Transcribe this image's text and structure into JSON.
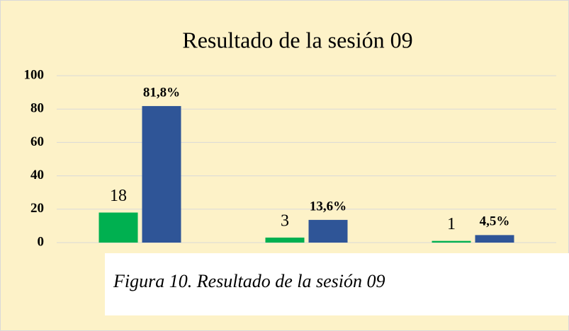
{
  "chart_data": {
    "type": "bar",
    "title": "Resultado de la sesión 09",
    "categories": [
      null,
      null,
      null
    ],
    "series": [
      {
        "color": "#00b050",
        "values": [
          18,
          3,
          1
        ]
      },
      {
        "color": "#2f5597",
        "values": [
          81.8,
          13.6,
          4.5
        ],
        "value_labels": [
          "81,8%",
          "13,6%",
          "4,5%"
        ]
      }
    ],
    "ylim": [
      0,
      100
    ],
    "yticks": [
      0,
      20,
      40,
      60,
      80,
      100
    ],
    "grid": true
  },
  "caption": "Figura 10. Resultado de la sesión 09"
}
